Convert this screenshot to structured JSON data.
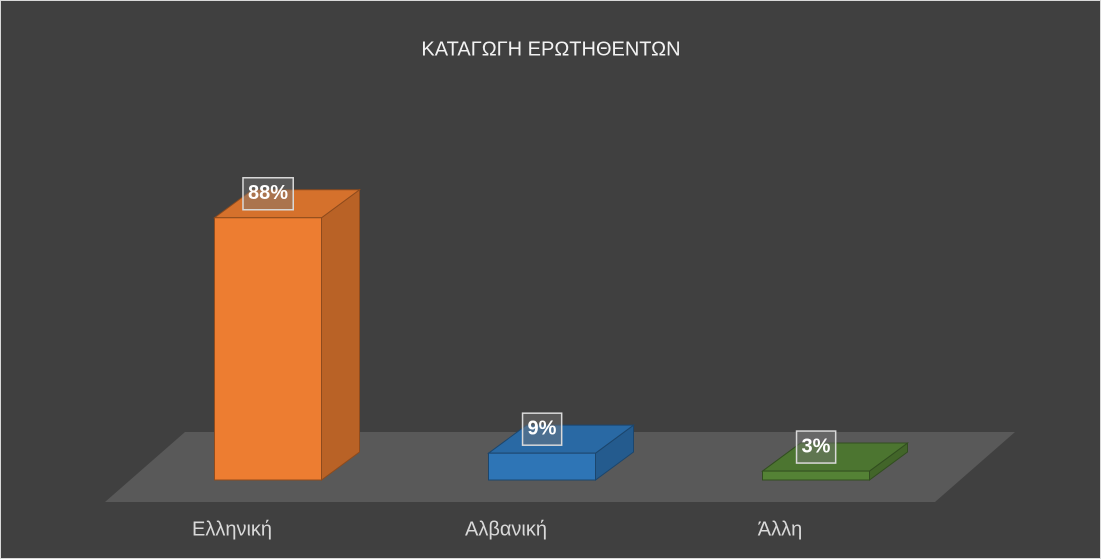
{
  "chart_data": {
    "type": "bar3d",
    "title": "ΚΑΤΑΓΩΓΗ ΕΡΩΤΗΘΕΝΤΩΝ",
    "categories": [
      "Ελληνική",
      "Αλβανική",
      "Άλλη"
    ],
    "values": [
      88,
      9,
      3
    ],
    "value_labels": [
      "88%",
      "9%",
      "3%"
    ],
    "colors": [
      "#ED7D31",
      "#2E75B6",
      "#548235"
    ]
  }
}
